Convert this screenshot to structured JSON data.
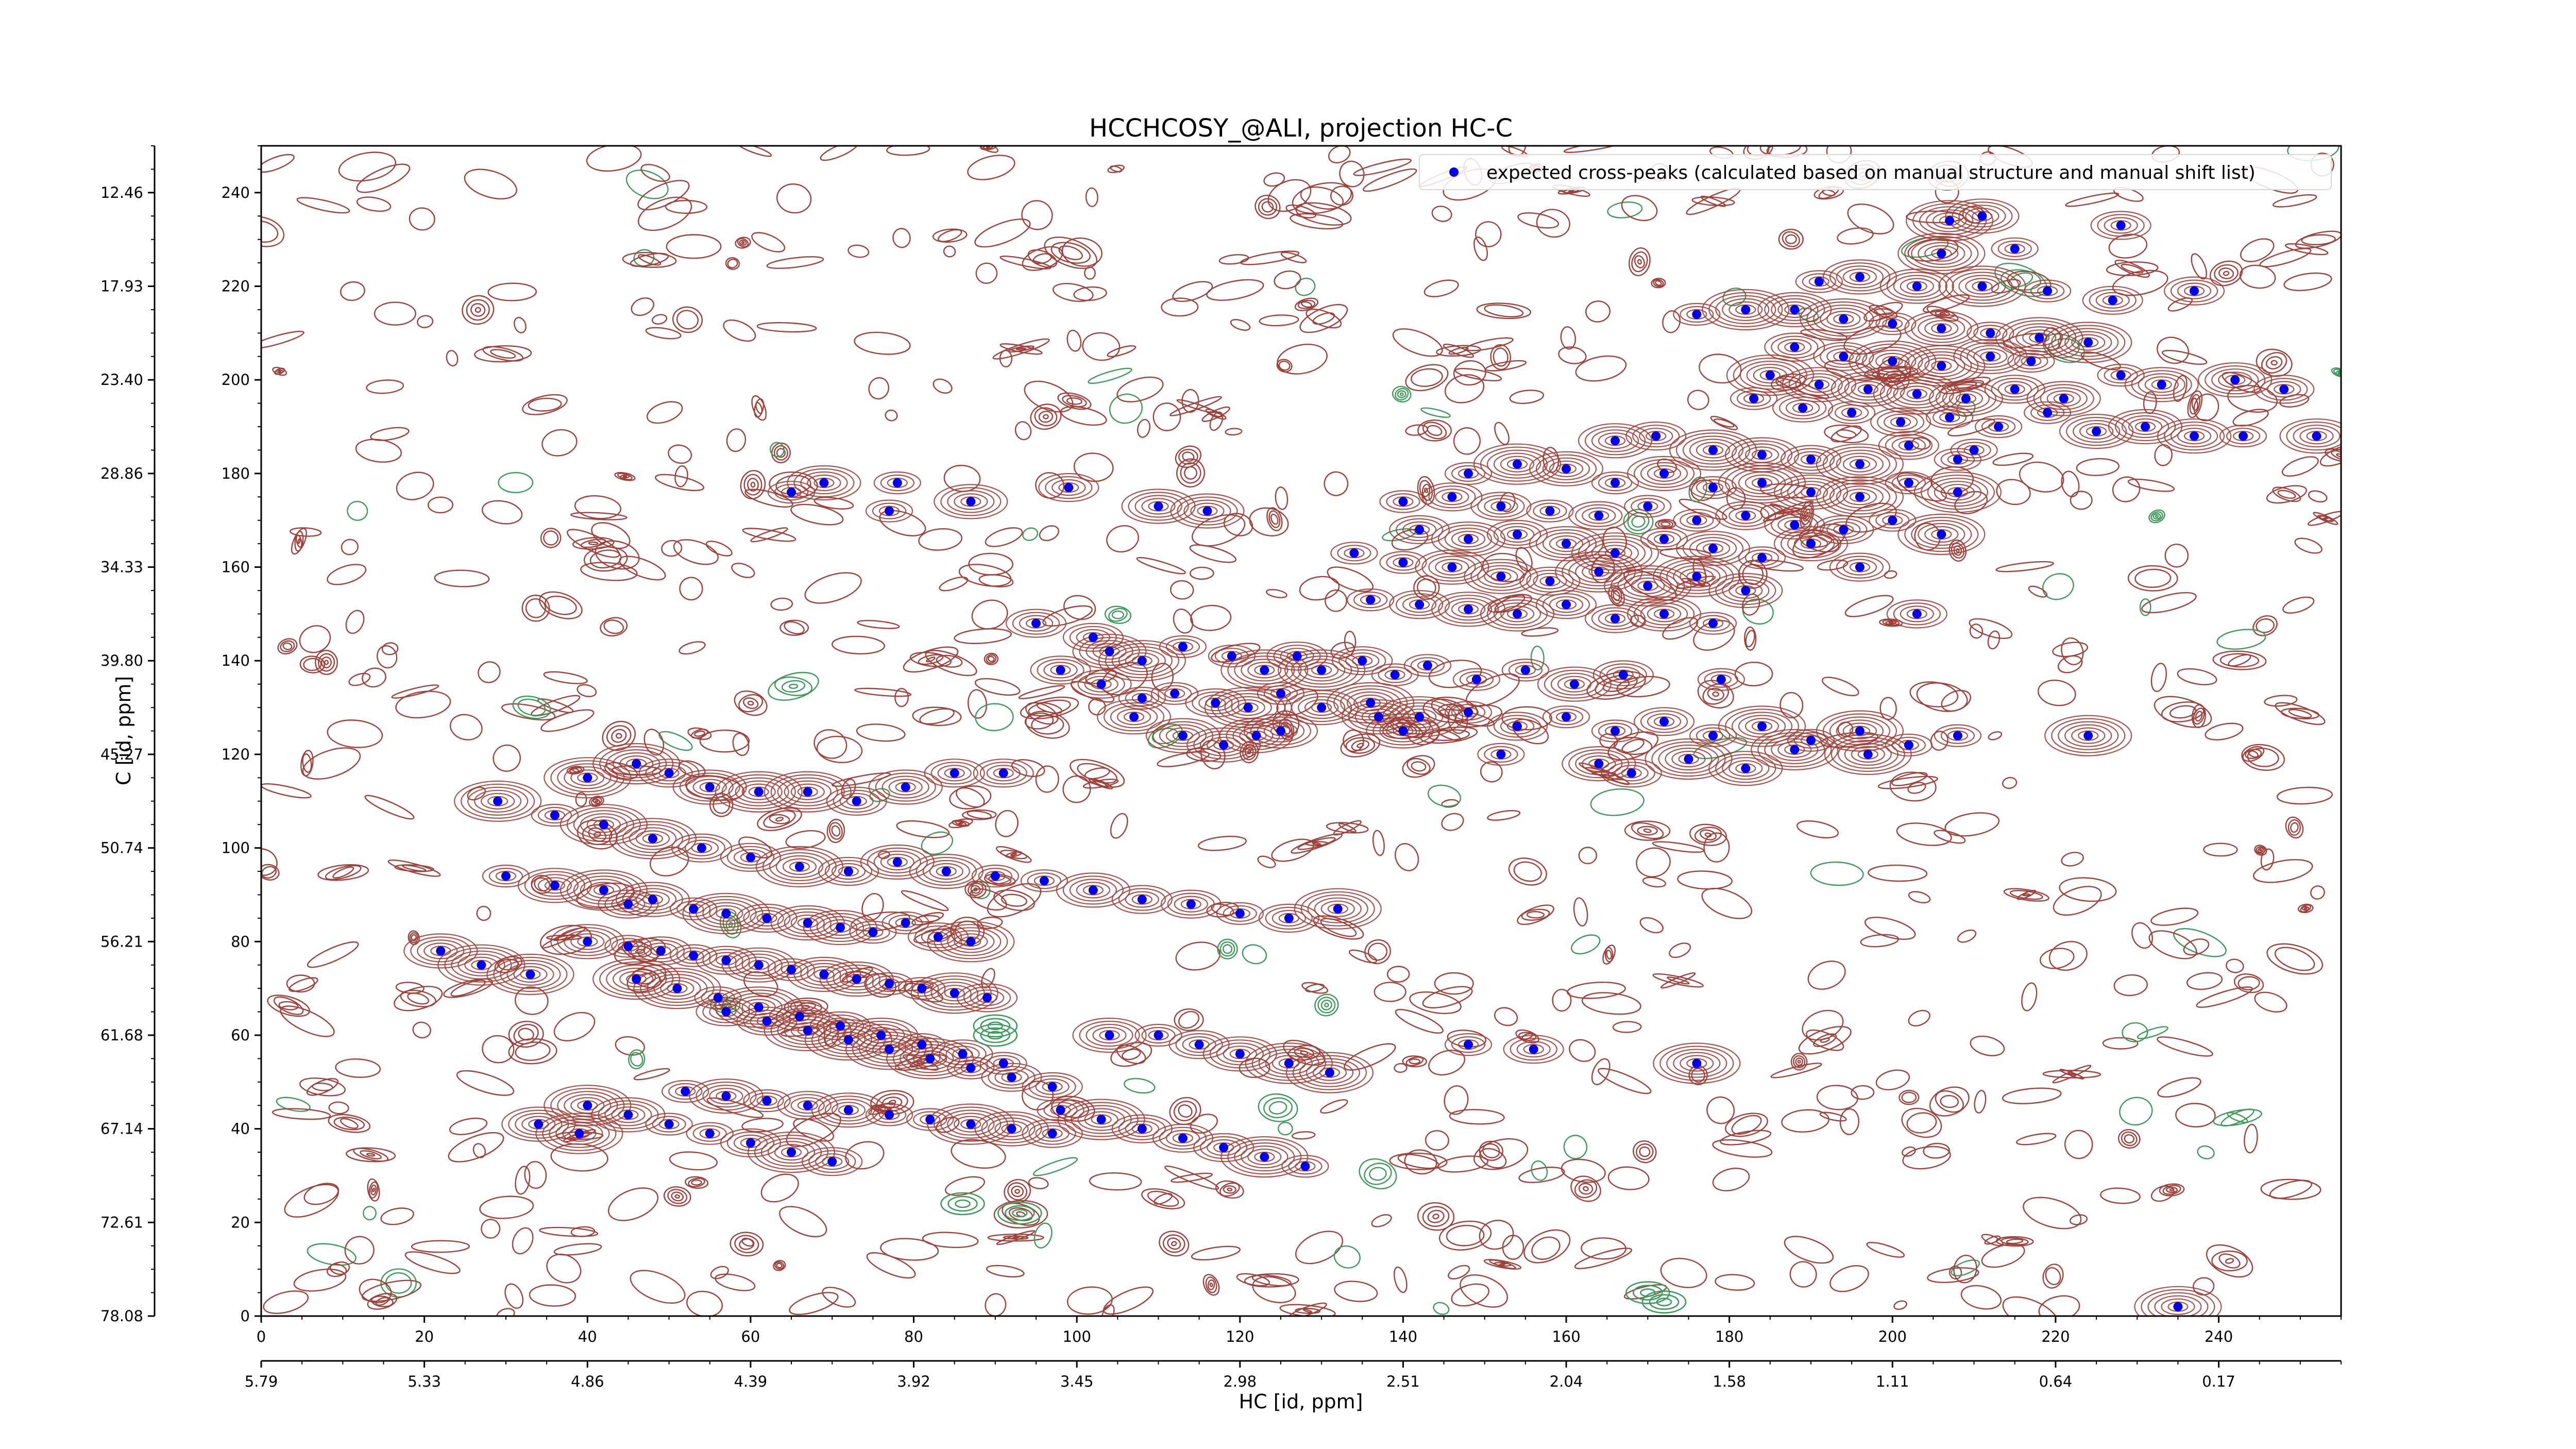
{
  "chart_data": {
    "type": "scatter",
    "title": "HCCHCOSY_@ALI, projection HC-C",
    "xlabel": "HC [id, ppm]",
    "ylabel": "C [id, ppm]",
    "xlim": [
      0,
      255
    ],
    "ylim": [
      0,
      250
    ],
    "x_ticks": [
      "0",
      "20",
      "40",
      "60",
      "80",
      "100",
      "120",
      "140",
      "160",
      "180",
      "200",
      "220",
      "240"
    ],
    "x_ppm_ticks": [
      "5.79",
      "5.33",
      "4.86",
      "4.39",
      "3.92",
      "3.45",
      "2.98",
      "2.51",
      "2.04",
      "1.58",
      "1.11",
      "0.64",
      "0.17"
    ],
    "y_ticks": [
      "0",
      "20",
      "40",
      "60",
      "80",
      "100",
      "120",
      "140",
      "160",
      "180",
      "200",
      "220",
      "240"
    ],
    "y_ppm_ticks": [
      "78.08",
      "72.61",
      "67.14",
      "61.68",
      "56.21",
      "50.74",
      "45.27",
      "39.80",
      "34.33",
      "28.86",
      "23.40",
      "17.93",
      "12.46"
    ],
    "grid": false,
    "legend_position": "top-right",
    "colors": {
      "positive_contour": "#a0403a",
      "negative_contour": "#3d9a5a",
      "peak_marker": "#0000ee"
    },
    "series": [
      {
        "name": "expected cross-peaks (calculated based on manual structure and manual shift list)",
        "points": [
          [
            207,
            234
          ],
          [
            211,
            235
          ],
          [
            228,
            233
          ],
          [
            206,
            227
          ],
          [
            215,
            228
          ],
          [
            191,
            221
          ],
          [
            196,
            222
          ],
          [
            203,
            220
          ],
          [
            211,
            220
          ],
          [
            219,
            219
          ],
          [
            227,
            217
          ],
          [
            237,
            219
          ],
          [
            176,
            214
          ],
          [
            182,
            215
          ],
          [
            188,
            215
          ],
          [
            194,
            213
          ],
          [
            200,
            212
          ],
          [
            206,
            211
          ],
          [
            212,
            210
          ],
          [
            218,
            209
          ],
          [
            224,
            208
          ],
          [
            212,
            205
          ],
          [
            217,
            204
          ],
          [
            188,
            207
          ],
          [
            194,
            205
          ],
          [
            200,
            204
          ],
          [
            206,
            203
          ],
          [
            185,
            201
          ],
          [
            191,
            199
          ],
          [
            197,
            198
          ],
          [
            203,
            197
          ],
          [
            209,
            196
          ],
          [
            215,
            198
          ],
          [
            221,
            196
          ],
          [
            228,
            201
          ],
          [
            233,
            199
          ],
          [
            242,
            200
          ],
          [
            248,
            198
          ],
          [
            183,
            196
          ],
          [
            189,
            194
          ],
          [
            195,
            193
          ],
          [
            201,
            191
          ],
          [
            207,
            192
          ],
          [
            213,
            190
          ],
          [
            219,
            193
          ],
          [
            225,
            189
          ],
          [
            231,
            190
          ],
          [
            237,
            188
          ],
          [
            243,
            188
          ],
          [
            252,
            188
          ],
          [
            210,
            185
          ],
          [
            166,
            187
          ],
          [
            171,
            188
          ],
          [
            178,
            185
          ],
          [
            184,
            184
          ],
          [
            190,
            183
          ],
          [
            196,
            182
          ],
          [
            202,
            186
          ],
          [
            208,
            183
          ],
          [
            148,
            180
          ],
          [
            154,
            182
          ],
          [
            160,
            181
          ],
          [
            166,
            178
          ],
          [
            172,
            180
          ],
          [
            178,
            177
          ],
          [
            184,
            178
          ],
          [
            190,
            176
          ],
          [
            196,
            175
          ],
          [
            202,
            178
          ],
          [
            208,
            176
          ],
          [
            140,
            174
          ],
          [
            146,
            175
          ],
          [
            152,
            173
          ],
          [
            158,
            172
          ],
          [
            164,
            171
          ],
          [
            170,
            173
          ],
          [
            176,
            170
          ],
          [
            182,
            171
          ],
          [
            188,
            169
          ],
          [
            194,
            168
          ],
          [
            200,
            170
          ],
          [
            206,
            167
          ],
          [
            110,
            173
          ],
          [
            116,
            172
          ],
          [
            142,
            168
          ],
          [
            148,
            166
          ],
          [
            154,
            167
          ],
          [
            160,
            165
          ],
          [
            166,
            163
          ],
          [
            172,
            166
          ],
          [
            178,
            164
          ],
          [
            184,
            162
          ],
          [
            190,
            165
          ],
          [
            196,
            160
          ],
          [
            65,
            176
          ],
          [
            69,
            178
          ],
          [
            77,
            172
          ],
          [
            78,
            178
          ],
          [
            87,
            174
          ],
          [
            99,
            177
          ],
          [
            134,
            163
          ],
          [
            140,
            161
          ],
          [
            146,
            160
          ],
          [
            152,
            158
          ],
          [
            158,
            157
          ],
          [
            164,
            159
          ],
          [
            170,
            156
          ],
          [
            176,
            158
          ],
          [
            182,
            155
          ],
          [
            136,
            153
          ],
          [
            142,
            152
          ],
          [
            148,
            151
          ],
          [
            154,
            150
          ],
          [
            160,
            152
          ],
          [
            166,
            149
          ],
          [
            172,
            150
          ],
          [
            178,
            148
          ],
          [
            203,
            150
          ],
          [
            95,
            148
          ],
          [
            102,
            145
          ],
          [
            104,
            142
          ],
          [
            108,
            140
          ],
          [
            113,
            143
          ],
          [
            119,
            141
          ],
          [
            123,
            138
          ],
          [
            127,
            141
          ],
          [
            130,
            138
          ],
          [
            135,
            140
          ],
          [
            139,
            137
          ],
          [
            143,
            139
          ],
          [
            149,
            136
          ],
          [
            155,
            138
          ],
          [
            161,
            135
          ],
          [
            167,
            137
          ],
          [
            179,
            136
          ],
          [
            98,
            138
          ],
          [
            103,
            135
          ],
          [
            108,
            132
          ],
          [
            112,
            133
          ],
          [
            117,
            131
          ],
          [
            121,
            130
          ],
          [
            125,
            133
          ],
          [
            130,
            130
          ],
          [
            136,
            131
          ],
          [
            142,
            128
          ],
          [
            148,
            129
          ],
          [
            154,
            126
          ],
          [
            160,
            128
          ],
          [
            166,
            125
          ],
          [
            172,
            127
          ],
          [
            178,
            124
          ],
          [
            184,
            126
          ],
          [
            190,
            123
          ],
          [
            196,
            125
          ],
          [
            202,
            122
          ],
          [
            208,
            124
          ],
          [
            224,
            124
          ],
          [
            107,
            128
          ],
          [
            113,
            124
          ],
          [
            118,
            122
          ],
          [
            122,
            124
          ],
          [
            125,
            125
          ],
          [
            137,
            128
          ],
          [
            140,
            125
          ],
          [
            152,
            120
          ],
          [
            164,
            118
          ],
          [
            168,
            116
          ],
          [
            175,
            119
          ],
          [
            182,
            117
          ],
          [
            188,
            121
          ],
          [
            197,
            120
          ],
          [
            46,
            118
          ],
          [
            50,
            116
          ],
          [
            55,
            113
          ],
          [
            61,
            112
          ],
          [
            67,
            112
          ],
          [
            73,
            110
          ],
          [
            79,
            113
          ],
          [
            85,
            116
          ],
          [
            91,
            116
          ],
          [
            40,
            115
          ],
          [
            29,
            110
          ],
          [
            36,
            107
          ],
          [
            42,
            105
          ],
          [
            48,
            102
          ],
          [
            54,
            100
          ],
          [
            60,
            98
          ],
          [
            66,
            96
          ],
          [
            72,
            95
          ],
          [
            78,
            97
          ],
          [
            84,
            95
          ],
          [
            90,
            94
          ],
          [
            96,
            93
          ],
          [
            102,
            91
          ],
          [
            108,
            89
          ],
          [
            114,
            88
          ],
          [
            120,
            86
          ],
          [
            126,
            85
          ],
          [
            132,
            87
          ],
          [
            30,
            94
          ],
          [
            36,
            92
          ],
          [
            42,
            91
          ],
          [
            45,
            88
          ],
          [
            48,
            89
          ],
          [
            53,
            87
          ],
          [
            57,
            86
          ],
          [
            62,
            85
          ],
          [
            67,
            84
          ],
          [
            71,
            83
          ],
          [
            75,
            82
          ],
          [
            79,
            84
          ],
          [
            83,
            81
          ],
          [
            87,
            80
          ],
          [
            40,
            80
          ],
          [
            45,
            79
          ],
          [
            49,
            78
          ],
          [
            53,
            77
          ],
          [
            57,
            76
          ],
          [
            61,
            75
          ],
          [
            65,
            74
          ],
          [
            69,
            73
          ],
          [
            73,
            72
          ],
          [
            77,
            71
          ],
          [
            81,
            70
          ],
          [
            85,
            69
          ],
          [
            89,
            68
          ],
          [
            22,
            78
          ],
          [
            27,
            75
          ],
          [
            33,
            73
          ],
          [
            46,
            72
          ],
          [
            51,
            70
          ],
          [
            56,
            68
          ],
          [
            61,
            66
          ],
          [
            66,
            64
          ],
          [
            71,
            62
          ],
          [
            76,
            60
          ],
          [
            81,
            58
          ],
          [
            86,
            56
          ],
          [
            91,
            54
          ],
          [
            57,
            65
          ],
          [
            62,
            63
          ],
          [
            67,
            61
          ],
          [
            72,
            59
          ],
          [
            77,
            57
          ],
          [
            82,
            55
          ],
          [
            87,
            53
          ],
          [
            92,
            51
          ],
          [
            97,
            49
          ],
          [
            104,
            60
          ],
          [
            110,
            60
          ],
          [
            115,
            58
          ],
          [
            120,
            56
          ],
          [
            126,
            54
          ],
          [
            131,
            52
          ],
          [
            148,
            58
          ],
          [
            156,
            57
          ],
          [
            176,
            54
          ],
          [
            52,
            48
          ],
          [
            57,
            47
          ],
          [
            62,
            46
          ],
          [
            67,
            45
          ],
          [
            72,
            44
          ],
          [
            77,
            43
          ],
          [
            82,
            42
          ],
          [
            87,
            41
          ],
          [
            92,
            40
          ],
          [
            97,
            39
          ],
          [
            40,
            45
          ],
          [
            45,
            43
          ],
          [
            50,
            41
          ],
          [
            55,
            39
          ],
          [
            60,
            37
          ],
          [
            65,
            35
          ],
          [
            70,
            33
          ],
          [
            34,
            41
          ],
          [
            39,
            39
          ],
          [
            98,
            44
          ],
          [
            103,
            42
          ],
          [
            108,
            40
          ],
          [
            113,
            38
          ],
          [
            118,
            36
          ],
          [
            123,
            34
          ],
          [
            128,
            32
          ],
          [
            235,
            2
          ]
        ]
      }
    ]
  }
}
